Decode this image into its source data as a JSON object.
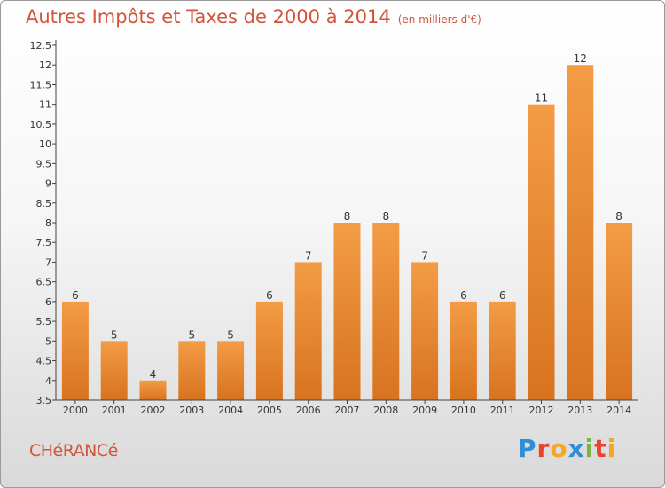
{
  "chart_data": {
    "type": "bar",
    "title": "Autres Impôts et Taxes de 2000 à 2014",
    "subtitle": "(en milliers d'€)",
    "categories": [
      "2000",
      "2001",
      "2002",
      "2003",
      "2004",
      "2005",
      "2006",
      "2007",
      "2008",
      "2009",
      "2010",
      "2011",
      "2012",
      "2013",
      "2014"
    ],
    "values": [
      6,
      5,
      4,
      5,
      5,
      6,
      7,
      8,
      8,
      7,
      6,
      6,
      11,
      12,
      8
    ],
    "ylim": [
      3.5,
      12.5
    ],
    "yticks": [
      "3.5",
      "4",
      "4.5",
      "5",
      "5.5",
      "6",
      "6.5",
      "7",
      "7.5",
      "8",
      "8.5",
      "9",
      "9.5",
      "10",
      "10.5",
      "11",
      "11.5",
      "12",
      "12.5"
    ],
    "grid": false,
    "bar_color": "#f39c45",
    "bar_color_dark": "#d8731f",
    "xlabel": "",
    "ylabel": ""
  },
  "commune": "CHéRANCé",
  "logo": {
    "letters": [
      "P",
      "r",
      "o",
      "x",
      "i",
      "t",
      "i"
    ],
    "colors": [
      "#2f8fd6",
      "#e8452c",
      "#f5a623",
      "#2f8fd6",
      "#7cb342",
      "#e8452c",
      "#f5a623"
    ]
  }
}
